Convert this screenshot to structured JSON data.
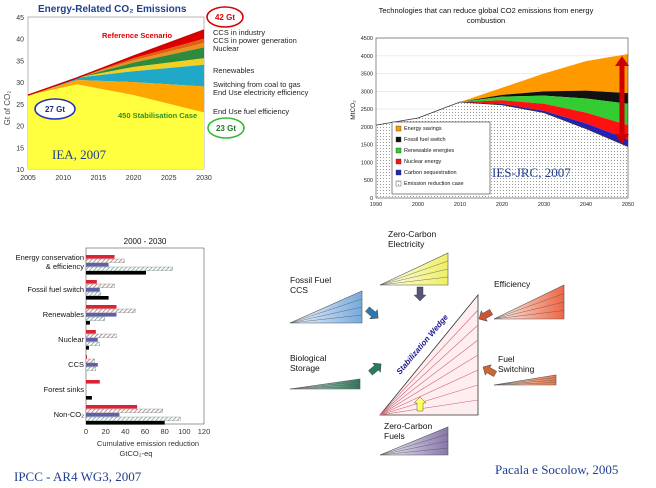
{
  "chart_data": [
    {
      "type": "area",
      "title": "Energy-Related CO₂ Emissions",
      "ylabel": "Gt of CO₂",
      "xlabel": "",
      "x": [
        2005,
        2012,
        2020,
        2030
      ],
      "ylim": [
        10,
        45
      ],
      "xlim": [
        2005,
        2030
      ],
      "xticks": [
        "2005",
        "2010",
        "2015",
        "2020",
        "2025",
        "2030"
      ],
      "yticks": [
        "10",
        "15",
        "20",
        "25",
        "30",
        "35",
        "40",
        "45"
      ],
      "boundaries": [
        {
          "name": "Reference Scenario",
          "values": [
            27,
            31,
            36,
            42
          ]
        },
        {
          "name": "CCS in industry",
          "values": [
            27,
            31,
            35.5,
            40
          ]
        },
        {
          "name": "CCS in power generation",
          "values": [
            27,
            31,
            35,
            39
          ]
        },
        {
          "name": "Nuclear",
          "values": [
            27,
            31,
            34.5,
            38
          ]
        },
        {
          "name": "Renewables",
          "values": [
            27,
            31,
            33.5,
            35.5
          ]
        },
        {
          "name": "Switching from coal to gas",
          "values": [
            27,
            31,
            32.5,
            34
          ]
        },
        {
          "name": "End Use electricity efficiency",
          "values": [
            27,
            30.5,
            30,
            29
          ]
        },
        {
          "name": "End Use fuel efficiency",
          "values": [
            27,
            29.5,
            27,
            23
          ]
        }
      ],
      "colors": [
        "#dd0000",
        "#e06010",
        "#e89020",
        "#2e8b3e",
        "#f0d020",
        "#20a8c8",
        "#ffa500",
        "#ffff40",
        "#c8f0c0"
      ],
      "annotations": {
        "reference": "Reference Scenario",
        "stabilisation": "450 Stabilisation Case",
        "start": "27 Gt",
        "top": "42 Gt",
        "bottom": "23 Gt"
      },
      "legend": [
        "CCS in industry",
        "CCS in power generation",
        "Nuclear",
        "Renewables",
        "Switching from coal to gas",
        "End Use electricity efficiency",
        "End Use fuel efficiency"
      ],
      "caption": "IEA, 2007"
    },
    {
      "type": "area",
      "title": "Technologies that can reduce global CO2 emissions from energy combustion",
      "ylabel": "MtCO₂",
      "xlabel": "",
      "x": [
        1990,
        2000,
        2010,
        2020,
        2030,
        2040,
        2050
      ],
      "ylim": [
        0,
        4500
      ],
      "xlim": [
        1990,
        2050
      ],
      "xticks": [
        "1990",
        "2000",
        "2010",
        "2020",
        "2030",
        "2040",
        "2050"
      ],
      "yticks": [
        "0",
        "500",
        "1000",
        "1500",
        "2000",
        "2500",
        "3000",
        "3500",
        "4000",
        "4500"
      ],
      "boundaries": [
        {
          "name": "Energy savings",
          "values": [
            null,
            null,
            2700,
            3100,
            3500,
            3850,
            4050
          ]
        },
        {
          "name": "Fossil fuel switch",
          "values": [
            null,
            null,
            2700,
            2900,
            3000,
            3020,
            2950
          ]
        },
        {
          "name": "Renewable energies",
          "values": [
            null,
            null,
            2700,
            2850,
            2880,
            2800,
            2650
          ]
        },
        {
          "name": "Nuclear energy",
          "values": [
            null,
            null,
            2700,
            2750,
            2650,
            2400,
            2050
          ]
        },
        {
          "name": "Carbon sequestration",
          "values": [
            null,
            null,
            2700,
            2650,
            2450,
            2100,
            1650
          ]
        },
        {
          "name": "Emission reduction case",
          "values": [
            2050,
            2250,
            2700,
            2620,
            2400,
            1950,
            1450
          ]
        }
      ],
      "legend": [
        "Energy savings",
        "Fossil fuel switch",
        "Renewable energies",
        "Nuclear energy",
        "Carbon sequestration",
        "Emission reduction case"
      ],
      "colors": [
        "#ff9900",
        "#111111",
        "#33cc33",
        "#ff1111",
        "#2222bb"
      ],
      "caption": "IES-JRC, 2007"
    },
    {
      "type": "bar",
      "title": "2000 - 2030",
      "xlabel": "Cumulative emission reduction",
      "xlabel2": "GtCO₂-eq",
      "xlim": [
        0,
        120
      ],
      "xticks": [
        "0",
        "20",
        "40",
        "60",
        "80",
        "100",
        "120"
      ],
      "categories": [
        "Energy conservation & efficiency",
        "Fossil fuel switch",
        "Renewables",
        "Nuclear",
        "CCS",
        "Forest sinks",
        "Non-CO₂"
      ],
      "series": [
        {
          "values": [
            29,
            11,
            31,
            10,
            1,
            14,
            52
          ]
        },
        {
          "values": [
            39,
            29,
            50,
            31,
            9,
            0,
            78
          ]
        },
        {
          "values": [
            23,
            14,
            31,
            12,
            12,
            0,
            34
          ]
        },
        {
          "values": [
            88,
            15,
            19,
            14,
            10,
            0,
            96
          ]
        },
        {
          "values": [
            61,
            23,
            4,
            3,
            0,
            6,
            80
          ]
        }
      ],
      "colors": [
        "#dd2233",
        "#a08080",
        "#6060aa",
        "#80b0a0",
        "#000000"
      ],
      "caption": "IPCC - AR4 WG3, 2007"
    },
    {
      "type": "diagram",
      "center_label": "Stabilization Wedge",
      "wedges": [
        {
          "name": "Zero-Carbon Electricity",
          "color": "#ffff99"
        },
        {
          "name": "Fossil Fuel CCS",
          "color": "#99ccee"
        },
        {
          "name": "Efficiency",
          "color": "#ff8855"
        },
        {
          "name": "Biological Storage",
          "color": "#338866"
        },
        {
          "name": "Fuel Switching",
          "color": "#ff9955"
        },
        {
          "name": "Zero-Carbon Fuels",
          "color": "#9988bb"
        }
      ],
      "caption": "Pacala e Socolow, 2005"
    }
  ]
}
